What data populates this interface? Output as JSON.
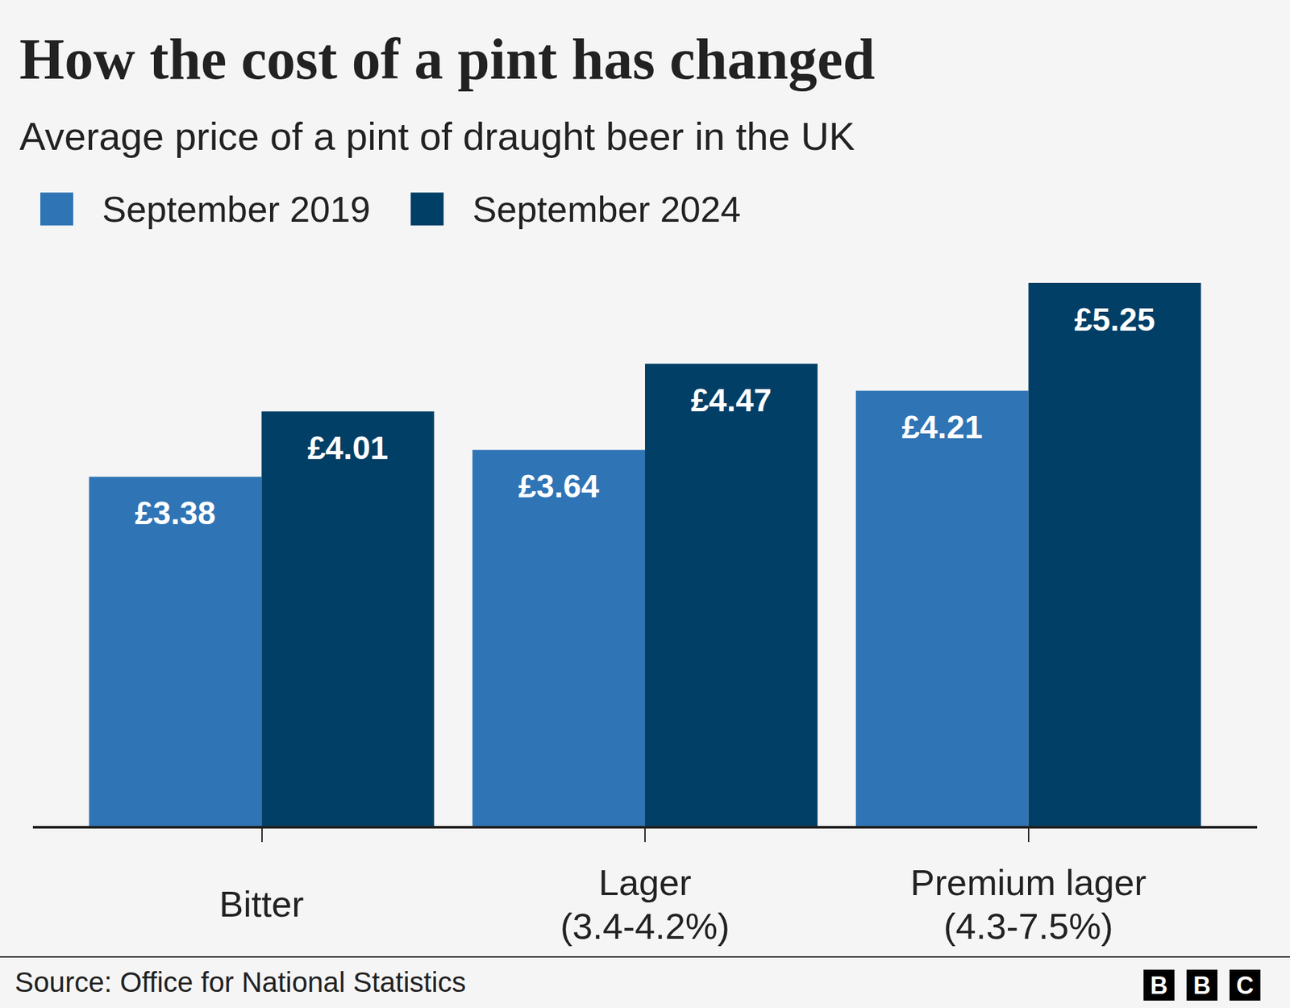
{
  "chart_data": {
    "type": "bar",
    "title": "How the cost of a pint has changed",
    "subtitle": "Average price of a pint of draught beer in the UK",
    "categories": [
      "Bitter",
      "Lager\n(3.4-4.2%)",
      "Premium lager\n(4.3-7.5%)"
    ],
    "series": [
      {
        "name": "September 2019",
        "color": "#2f74b5",
        "values": [
          3.38,
          3.64,
          4.21
        ],
        "value_labels": [
          "£3.38",
          "£3.64",
          "£4.21"
        ]
      },
      {
        "name": "September 2024",
        "color": "#023f66",
        "values": [
          4.01,
          4.47,
          5.25
        ],
        "value_labels": [
          "£4.01",
          "£4.47",
          "£5.25"
        ]
      }
    ],
    "ylim": [
      0,
      5.25
    ],
    "yticks": [],
    "grid": false,
    "legend": "top left",
    "data_labels": true,
    "tick_labels": "x",
    "source": "Source: Office for National Statistics",
    "branding": "BBC"
  }
}
